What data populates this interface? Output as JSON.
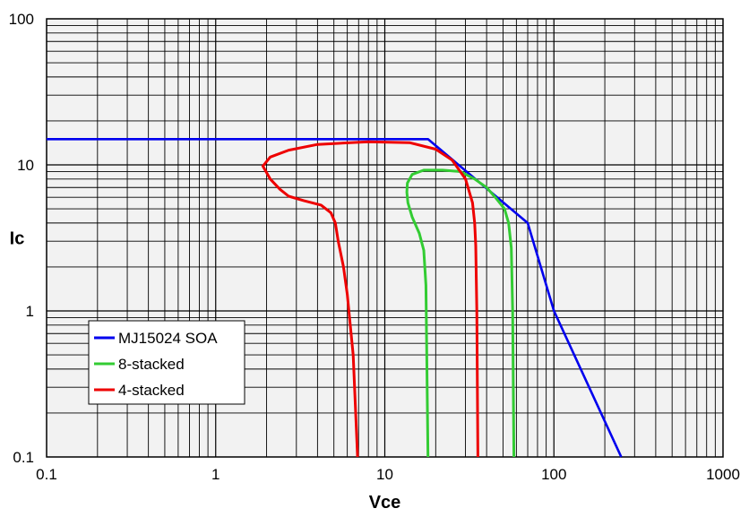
{
  "chart_data": {
    "type": "line",
    "title": "",
    "xlabel": "Vce",
    "ylabel": "Ic",
    "xscale": "log",
    "yscale": "log",
    "xlim": [
      0.1,
      1000
    ],
    "ylim": [
      0.1,
      100
    ],
    "x_ticks": [
      "0.1",
      "1",
      "10",
      "100",
      "1000"
    ],
    "y_ticks": [
      "0.1",
      "1",
      "10",
      "100"
    ],
    "grid": true,
    "legend_position": "bottom-left",
    "series": [
      {
        "name": "MJ15024 SOA",
        "color": "#0000ee",
        "points": [
          [
            0.1,
            15
          ],
          [
            18,
            15
          ],
          [
            70,
            4
          ],
          [
            100,
            1
          ],
          [
            250,
            0.1
          ]
        ]
      },
      {
        "name": "8-stacked",
        "color": "#33cc33",
        "points": [
          [
            18,
            0.1
          ],
          [
            17.5,
            1.5
          ],
          [
            17,
            2.6
          ],
          [
            16,
            3.4
          ],
          [
            14.5,
            4.4
          ],
          [
            13.7,
            5.5
          ],
          [
            13.5,
            6.5
          ],
          [
            13.6,
            7.5
          ],
          [
            14.5,
            8.6
          ],
          [
            17,
            9.2
          ],
          [
            22,
            9.2
          ],
          [
            28,
            9.0
          ],
          [
            34,
            8.0
          ],
          [
            40,
            7.0
          ],
          [
            45,
            6.0
          ],
          [
            51,
            5.0
          ],
          [
            54,
            4.0
          ],
          [
            56,
            2.7
          ],
          [
            57,
            1.0
          ],
          [
            58,
            0.1
          ]
        ]
      },
      {
        "name": "4-stacked",
        "color": "#ee0000",
        "points": [
          [
            6.9,
            0.1
          ],
          [
            6.5,
            0.5
          ],
          [
            6.0,
            1.3
          ],
          [
            5.7,
            2.0
          ],
          [
            5.3,
            3.0
          ],
          [
            5.1,
            4.0
          ],
          [
            4.8,
            4.7
          ],
          [
            4.2,
            5.3
          ],
          [
            3.3,
            5.7
          ],
          [
            2.7,
            6.1
          ],
          [
            2.4,
            6.8
          ],
          [
            2.1,
            8.0
          ],
          [
            1.9,
            9.8
          ],
          [
            2.1,
            11.3
          ],
          [
            2.7,
            12.6
          ],
          [
            4,
            13.8
          ],
          [
            8,
            14.4
          ],
          [
            14,
            14.2
          ],
          [
            20,
            12.8
          ],
          [
            25,
            10.8
          ],
          [
            30,
            8.0
          ],
          [
            33,
            5.5
          ],
          [
            34,
            4.0
          ],
          [
            34.5,
            2.8
          ],
          [
            35,
            1.0
          ],
          [
            35.5,
            0.1
          ]
        ]
      }
    ]
  }
}
